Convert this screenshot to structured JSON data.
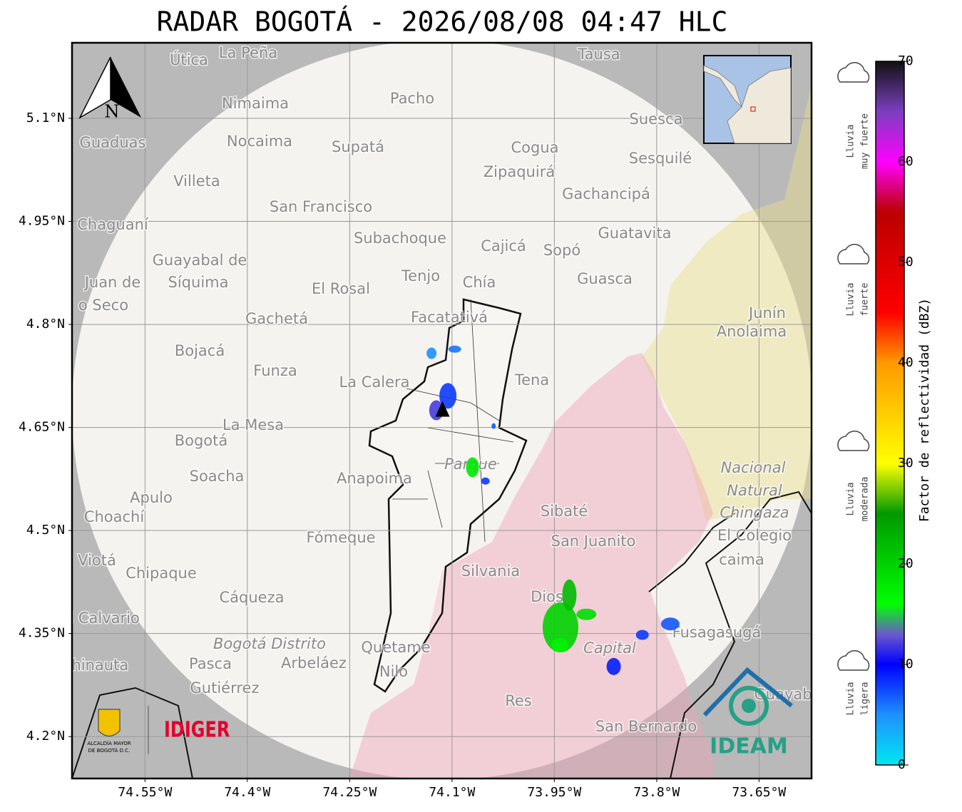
{
  "title": "RADAR BOGOTÁ - 2026/08/08 04:47 HLC",
  "map": {
    "xlim": [
      -74.657,
      -73.573
    ],
    "ylim": [
      4.139,
      5.21
    ],
    "xticks": [
      {
        "value": -74.55,
        "label": "74.55°W"
      },
      {
        "value": -74.4,
        "label": "74.4°W"
      },
      {
        "value": -74.25,
        "label": "74.25°W"
      },
      {
        "value": -74.1,
        "label": "74.1°W"
      },
      {
        "value": -73.95,
        "label": "73.95°W"
      },
      {
        "value": -73.8,
        "label": "73.8°W"
      },
      {
        "value": -73.65,
        "label": "73.65°W"
      }
    ],
    "yticks": [
      {
        "value": 5.1,
        "label": "5.1°N"
      },
      {
        "value": 4.95,
        "label": "4.95°N"
      },
      {
        "value": 4.8,
        "label": "4.8°N"
      },
      {
        "value": 4.65,
        "label": "4.65°N"
      },
      {
        "value": 4.5,
        "label": "4.5°N"
      },
      {
        "value": 4.35,
        "label": "4.35°N"
      },
      {
        "value": 4.2,
        "label": "4.2°N"
      }
    ],
    "grid": true,
    "north_label": "N",
    "places": [
      "La Peña",
      "Útica",
      "Tausa",
      "Pacho",
      "Nimaima",
      "Guaduas",
      "Nocaima",
      "Supatá",
      "Cogua",
      "Suesca",
      "Sesquilé",
      "Villeta",
      "Zipaquirá",
      "Gachancipá",
      "San Francisco",
      "Chaguaní",
      "Guatavita",
      "Subachoque",
      "Cajicá",
      "Sopó",
      "Guayabal de",
      "Síquima",
      "Tenjo",
      "Chía",
      "Guasca",
      "El Rosal",
      "Juan de",
      "o Seco",
      "Facatativá",
      "Gachetá",
      "Junín",
      "Anolaima",
      "Bojacá",
      "Funza",
      "La Calera",
      "Tena",
      "La Mesa",
      "Bogotá",
      "Parque",
      "Nacional",
      "Natural",
      "Chingaza",
      "El Colegio",
      "Soacha",
      "Anapoima",
      "Apulo",
      "Choachí",
      "Sibaté",
      "Fómeque",
      "San Juanito",
      "caima",
      "Viotá",
      "Chipaque",
      "Silvania",
      "Cáqueza",
      "Dios",
      "El Calvario",
      "Fusagasugá",
      "Bogotá Distrito",
      "Quetame",
      "Capital",
      "Nilo",
      "Chinauta",
      "Pasca",
      "Arbeláez",
      "Gutiérrez",
      "Res",
      "Guayabetal",
      "San Bernardo"
    ],
    "radar_site": {
      "lon": -74.114,
      "lat": 4.675
    },
    "echoes": [
      {
        "lon": -74.13,
        "lat": 4.758,
        "dbz": 5
      },
      {
        "lon": -74.096,
        "lat": 4.764,
        "dbz": 6
      },
      {
        "lon": -74.106,
        "lat": 4.696,
        "dbz": 8
      },
      {
        "lon": -74.123,
        "lat": 4.675,
        "dbz": 12
      },
      {
        "lon": -74.07,
        "lat": 4.592,
        "dbz": 18
      },
      {
        "lon": -74.051,
        "lat": 4.572,
        "dbz": 8
      },
      {
        "lon": -74.039,
        "lat": 4.652,
        "dbz": 7
      },
      {
        "lon": -73.941,
        "lat": 4.359,
        "dbz": 20
      },
      {
        "lon": -73.928,
        "lat": 4.406,
        "dbz": 22
      },
      {
        "lon": -73.903,
        "lat": 4.378,
        "dbz": 19
      },
      {
        "lon": -73.942,
        "lat": 4.333,
        "dbz": 17
      },
      {
        "lon": -73.821,
        "lat": 4.348,
        "dbz": 8
      },
      {
        "lon": -73.78,
        "lat": 4.364,
        "dbz": 7
      },
      {
        "lon": -73.863,
        "lat": 4.302,
        "dbz": 9
      }
    ]
  },
  "colorbar": {
    "label": "Factor de reflectividad (dBZ)",
    "lim": [
      0,
      70
    ],
    "ticks": [
      0,
      10,
      20,
      30,
      40,
      50,
      60,
      70
    ],
    "stops": [
      {
        "value": 0,
        "color": "#00e8f0"
      },
      {
        "value": 5,
        "color": "#1e90ff"
      },
      {
        "value": 10,
        "color": "#0000ff"
      },
      {
        "value": 13,
        "color": "#6a5acd"
      },
      {
        "value": 16,
        "color": "#00ff00"
      },
      {
        "value": 25,
        "color": "#009900"
      },
      {
        "value": 30,
        "color": "#ffff00"
      },
      {
        "value": 40,
        "color": "#ff9900"
      },
      {
        "value": 45,
        "color": "#ff0000"
      },
      {
        "value": 55,
        "color": "#bb0000"
      },
      {
        "value": 60,
        "color": "#ff00ff"
      },
      {
        "value": 65,
        "color": "#7b3fbf"
      },
      {
        "value": 70,
        "color": "#111111"
      }
    ]
  },
  "rain_levels": [
    [
      "Lluvia",
      "muy fuerte"
    ],
    [
      "Lluvia",
      "fuerte"
    ],
    [
      "Lluvia",
      "moderada"
    ],
    [
      "Lluvia",
      "ligera"
    ]
  ],
  "logos": {
    "alcaldia": [
      "ALCALDÍA MAYOR",
      "DE BOGOTÁ D.C."
    ],
    "idiger": "IDIGER",
    "ideam": "IDEAM"
  }
}
